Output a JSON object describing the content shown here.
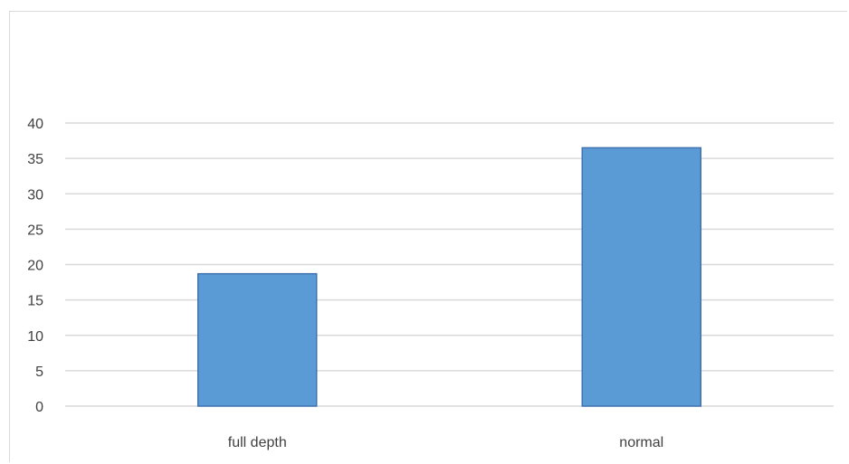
{
  "chart_data": {
    "type": "bar",
    "title": "",
    "xlabel": "",
    "ylabel": "",
    "categories": [
      "full depth",
      "normal"
    ],
    "values": [
      18.7,
      36.5
    ],
    "ylim": [
      0,
      40
    ],
    "yticks": [
      0,
      5,
      10,
      15,
      20,
      25,
      30,
      35,
      40
    ],
    "grid": true,
    "legend": "none",
    "colors": {
      "bar": "#5b9bd5",
      "bar_border": "#3f73b0",
      "grid": "#d9d9d9",
      "text": "#404040"
    }
  }
}
